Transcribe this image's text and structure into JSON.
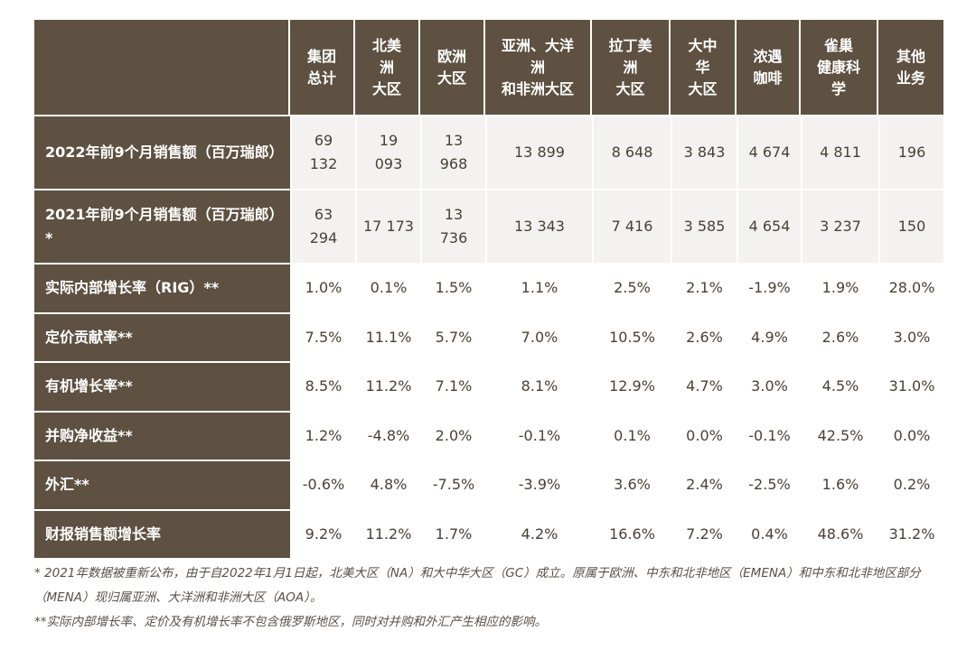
{
  "table": {
    "corner": "",
    "columns": [
      "集团\n总计",
      "北美\n洲\n大区",
      "欧洲\n大区",
      "亚洲、大洋\n洲\n和非洲大区",
      "拉丁美\n洲\n大区",
      "大中\n华\n大区",
      "浓遇\n咖啡",
      "雀巢\n健康科\n学",
      "其他\n业务"
    ],
    "rows": [
      {
        "label": "2022年前9个月销售额（百万瑞郎）",
        "values": [
          "69\n132",
          "19\n093",
          "13\n968",
          "13 899",
          "8 648",
          "3 843",
          "4 674",
          "4 811",
          "196"
        ]
      },
      {
        "label": "2021年前9个月销售额（百万瑞郎）*",
        "values": [
          "63\n294",
          "17 173",
          "13\n736",
          "13 343",
          "7 416",
          "3 585",
          "4 654",
          "3 237",
          "150"
        ]
      },
      {
        "label": "实际内部增长率（RIG）**",
        "values": [
          "1.0%",
          "0.1%",
          "1.5%",
          "1.1%",
          "2.5%",
          "2.1%",
          "-1.9%",
          "1.9%",
          "28.0%"
        ]
      },
      {
        "label": "定价贡献率**",
        "values": [
          "7.5%",
          "11.1%",
          "5.7%",
          "7.0%",
          "10.5%",
          "2.6%",
          "4.9%",
          "2.6%",
          "3.0%"
        ]
      },
      {
        "label": "有机增长率**",
        "values": [
          "8.5%",
          "11.2%",
          "7.1%",
          "8.1%",
          "12.9%",
          "4.7%",
          "3.0%",
          "4.5%",
          "31.0%"
        ]
      },
      {
        "label": "并购净收益**",
        "values": [
          "1.2%",
          "-4.8%",
          "2.0%",
          "-0.1%",
          "0.1%",
          "0.0%",
          "-0.1%",
          "42.5%",
          "0.0%"
        ]
      },
      {
        "label": "外汇**",
        "values": [
          "-0.6%",
          "4.8%",
          "-7.5%",
          "-3.9%",
          "3.6%",
          "2.4%",
          "-2.5%",
          "1.6%",
          "0.2%"
        ]
      },
      {
        "label": "财报销售额增长率",
        "values": [
          "9.2%",
          "11.2%",
          "1.7%",
          "4.2%",
          "16.6%",
          "7.2%",
          "0.4%",
          "48.6%",
          "31.2%"
        ]
      }
    ]
  },
  "notes": [
    "* 2021年数据被重新公布，由于自2022年1月1日起，北美大区（NA）和大中华大区（GC）成立。原属于欧洲、中东和北非地区（EMENA）和中东和北非地区部分（MENA）现归属亚洲、大洋洲和非洲大区（AOA）。",
    "**实际内部增长率、定价及有机增长率不包含俄罗斯地区，同时对并购和外汇产生相应的影响。"
  ],
  "colors": {
    "header_bg": "#5e5142",
    "shade_bg": "#f3f2f0",
    "text": "#4a4036"
  }
}
